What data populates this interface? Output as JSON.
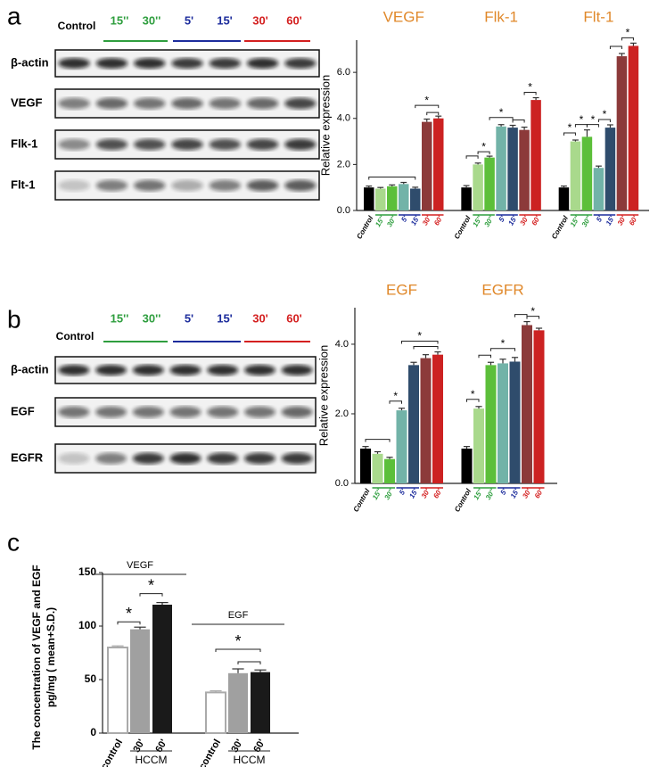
{
  "figure": {
    "panel_labels": [
      "a",
      "b",
      "c"
    ]
  },
  "blots": [
    {
      "lanes": [
        "Control",
        "15''",
        "30''",
        "5'",
        "15'",
        "30'",
        "60'"
      ],
      "lane_colors": [
        "#000000",
        "#2e9e3e",
        "#2e9e3e",
        "#1c2c9c",
        "#1c2c9c",
        "#d42020",
        "#d42020"
      ],
      "rows": [
        "β-actin",
        "VEGF",
        "Flk-1",
        "Flt-1"
      ]
    },
    {
      "lanes": [
        "Control",
        "15''",
        "30''",
        "5'",
        "15'",
        "30'",
        "60'"
      ],
      "lane_colors": [
        "#000000",
        "#2e9e3e",
        "#2e9e3e",
        "#1c2c9c",
        "#1c2c9c",
        "#d42020",
        "#d42020"
      ],
      "rows": [
        "β-actin",
        "EGF",
        "EGFR"
      ]
    }
  ],
  "chart_data": [
    {
      "type": "bar",
      "categories": [
        "VEGF",
        "Flk-1",
        "Flt-1"
      ],
      "title_color": "#e0882a",
      "ylabel": "Relative expression",
      "ylim": [
        0,
        7.4
      ],
      "yticks": [
        {
          "value": 0,
          "label": "0.0"
        },
        {
          "value": 2,
          "label": "2.0"
        },
        {
          "value": 4,
          "label": "4.0"
        },
        {
          "value": 6,
          "label": "6.0"
        }
      ],
      "significance_label": "*",
      "series": [
        {
          "name": "Control",
          "color": "#000000",
          "label_color": "#000000",
          "values": [
            1.0,
            1.0,
            1.0
          ],
          "errors": [
            0.06,
            0.08,
            0.06
          ]
        },
        {
          "name": "15''",
          "color": "#a9d98c",
          "label_color": "#2e9e3e",
          "values": [
            0.95,
            2.0,
            3.0
          ],
          "errors": [
            0.05,
            0.06,
            0.06
          ]
        },
        {
          "name": "30''",
          "color": "#5cbf3a",
          "label_color": "#2e9e3e",
          "values": [
            1.05,
            2.3,
            3.2
          ],
          "errors": [
            0.06,
            0.06,
            0.3
          ]
        },
        {
          "name": "5'",
          "color": "#72b3a8",
          "label_color": "#1c2c9c",
          "values": [
            1.15,
            3.65,
            1.85
          ],
          "errors": [
            0.07,
            0.08,
            0.08
          ]
        },
        {
          "name": "15'",
          "color": "#2f4c6c",
          "label_color": "#1c2c9c",
          "values": [
            0.95,
            3.6,
            3.6
          ],
          "errors": [
            0.06,
            0.1,
            0.12
          ]
        },
        {
          "name": "30'",
          "color": "#8c3a3a",
          "label_color": "#d42020",
          "values": [
            3.85,
            3.5,
            6.7
          ],
          "errors": [
            0.12,
            0.12,
            0.12
          ]
        },
        {
          "name": "60'",
          "color": "#cc2222",
          "label_color": "#d42020",
          "values": [
            4.0,
            4.8,
            7.15
          ],
          "errors": [
            0.1,
            0.1,
            0.12
          ]
        }
      ]
    },
    {
      "type": "bar",
      "categories": [
        "EGF",
        "EGFR"
      ],
      "title_color": "#e0882a",
      "ylabel": "Relative expression",
      "ylim": [
        0,
        5.05
      ],
      "yticks": [
        {
          "value": 0,
          "label": "0.0"
        },
        {
          "value": 2,
          "label": "2.0"
        },
        {
          "value": 4,
          "label": "4.0"
        }
      ],
      "significance_label": "*",
      "series": [
        {
          "name": "Control",
          "color": "#000000",
          "label_color": "#000000",
          "values": [
            1.0,
            1.0
          ],
          "errors": [
            0.06,
            0.06
          ]
        },
        {
          "name": "15''",
          "color": "#a9d98c",
          "label_color": "#2e9e3e",
          "values": [
            0.85,
            2.15
          ],
          "errors": [
            0.06,
            0.06
          ]
        },
        {
          "name": "30''",
          "color": "#5cbf3a",
          "label_color": "#2e9e3e",
          "values": [
            0.7,
            3.4
          ],
          "errors": [
            0.05,
            0.08
          ]
        },
        {
          "name": "5'",
          "color": "#72b3a8",
          "label_color": "#1c2c9c",
          "values": [
            2.1,
            3.45
          ],
          "errors": [
            0.06,
            0.12
          ]
        },
        {
          "name": "15'",
          "color": "#2f4c6c",
          "label_color": "#1c2c9c",
          "values": [
            3.4,
            3.5
          ],
          "errors": [
            0.08,
            0.12
          ]
        },
        {
          "name": "30'",
          "color": "#8c3a3a",
          "label_color": "#d42020",
          "values": [
            3.6,
            4.55
          ],
          "errors": [
            0.1,
            0.1
          ]
        },
        {
          "name": "60'",
          "color": "#cc2222",
          "label_color": "#d42020",
          "values": [
            3.7,
            4.4
          ],
          "errors": [
            0.08,
            0.06
          ]
        }
      ]
    },
    {
      "type": "bar",
      "categories": [
        "VEGF",
        "EGF"
      ],
      "ylabel": [
        "The concentration of VEGF and EGF",
        "pg/mg ( mean+S.D.)"
      ],
      "ylim": [
        0,
        150
      ],
      "yticks": [
        0,
        50,
        100,
        150
      ],
      "group_label": "HCCM",
      "significance_label": "*",
      "series": [
        {
          "name": "control",
          "color": "#ffffff",
          "stroke": "#aaaaaa",
          "values": [
            80,
            38
          ],
          "errors": [
            1.5,
            1.5
          ]
        },
        {
          "name": "30'",
          "color": "#a0a0a0",
          "values": [
            97,
            56
          ],
          "errors": [
            2,
            4
          ]
        },
        {
          "name": "60'",
          "color": "#1a1a1a",
          "values": [
            120,
            57
          ],
          "errors": [
            2,
            2
          ]
        }
      ]
    }
  ]
}
